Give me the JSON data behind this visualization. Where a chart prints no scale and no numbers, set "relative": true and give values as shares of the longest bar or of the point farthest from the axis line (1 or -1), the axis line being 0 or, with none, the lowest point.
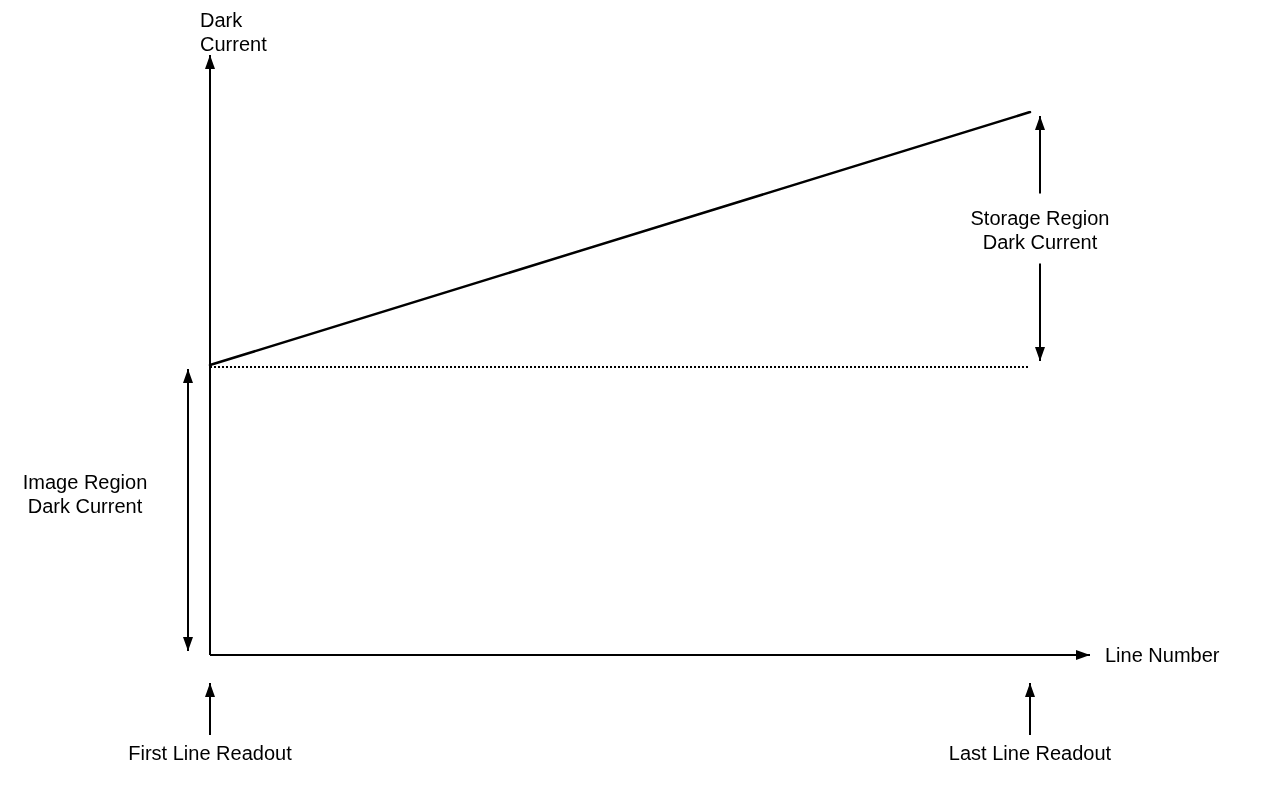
{
  "chart_data": {
    "type": "line",
    "relative": true,
    "xlabel": "Line Number",
    "ylabel": "Dark Current",
    "categories": [
      "First Line Readout",
      "Last Line Readout"
    ],
    "series": [
      {
        "color": "#000000",
        "values": [
          0.534,
          1
        ]
      }
    ],
    "ref_lines": [
      {
        "axis": "y",
        "value": 0.534,
        "line_style": "dotted",
        "color": "#000000"
      }
    ],
    "annotations": [
      "Storage Region Dark Current",
      "Image Region Dark Current"
    ],
    "marker": "none",
    "line_style": "solid"
  }
}
